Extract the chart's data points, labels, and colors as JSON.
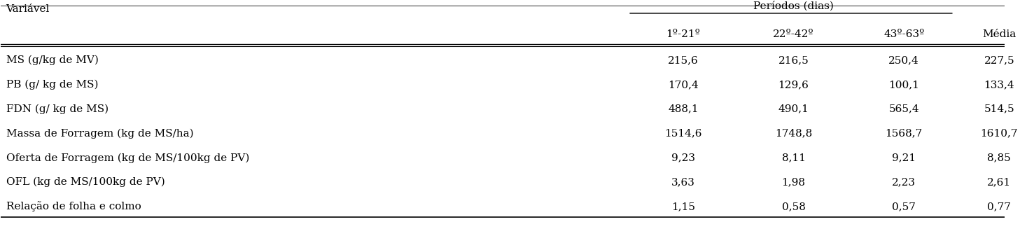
{
  "header_col": "Variável",
  "period_header": "Períodos (dias)",
  "subheaders": [
    "1º-21º",
    "22º-42º",
    "43º-63º",
    "Média"
  ],
  "rows": [
    [
      "MS (g/kg de MV)",
      "215,6",
      "216,5",
      "250,4",
      "227,5"
    ],
    [
      "PB (g/ kg de MS)",
      "170,4",
      "129,6",
      "100,1",
      "133,4"
    ],
    [
      "FDN (g/ kg de MS)",
      "488,1",
      "490,1",
      "565,4",
      "514,5"
    ],
    [
      "Massa de Forragem (kg de MS/ha)",
      "1514,6",
      "1748,8",
      "1568,7",
      "1610,7"
    ],
    [
      "Oferta de Forragem (kg de MS/100kg de PV)",
      "9,23",
      "8,11",
      "9,21",
      "8,85"
    ],
    [
      "OFL (kg de MS/100kg de PV)",
      "3,63",
      "1,98",
      "2,23",
      "2,61"
    ],
    [
      "Relação de folha e colmo",
      "1,15",
      "0,58",
      "0,57",
      "0,77"
    ]
  ],
  "fig_width": 14.57,
  "fig_height": 3.57,
  "dpi": 100,
  "font_size": 11,
  "header_font_size": 11,
  "bg_color": "#ffffff",
  "line_color": "#000000"
}
